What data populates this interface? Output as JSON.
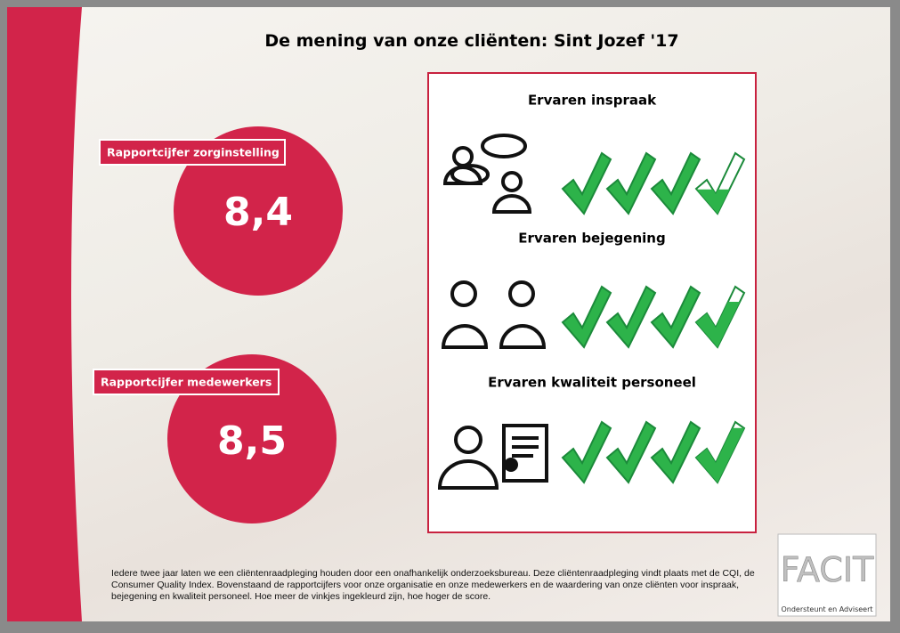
{
  "header": {
    "title": "De mening van onze cliënten: Sint Jozef '17"
  },
  "scores": [
    {
      "label": "Rapportcijfer zorginstelling",
      "value": "8,4"
    },
    {
      "label": "Rapportcijfer medewerkers",
      "value": "8,5"
    }
  ],
  "ratings": [
    {
      "title": "Ervaren inspraak",
      "checks": 3.4
    },
    {
      "title": "Ervaren bejegening",
      "checks": 3.75
    },
    {
      "title": "Ervaren kwaliteit personeel",
      "checks": 3.9
    }
  ],
  "footer": "Iedere twee jaar laten we een cliëntenraadpleging houden door een onafhankelijk onderzoeksbureau. Deze cliëntenraadpleging vindt plaats met de CQI, de Consumer Quality Index. Bovenstaand de rapportcijfers voor onze organisatie en onze medewerkers en de waardering van onze cliënten voor inspraak, bejegening en kwaliteit personeel. Hoe meer de vinkjes ingekleurd zijn, hoe hoger de score.",
  "logo": {
    "name": "FACIT",
    "tagline": "Ondersteunt en Adviseert"
  }
}
